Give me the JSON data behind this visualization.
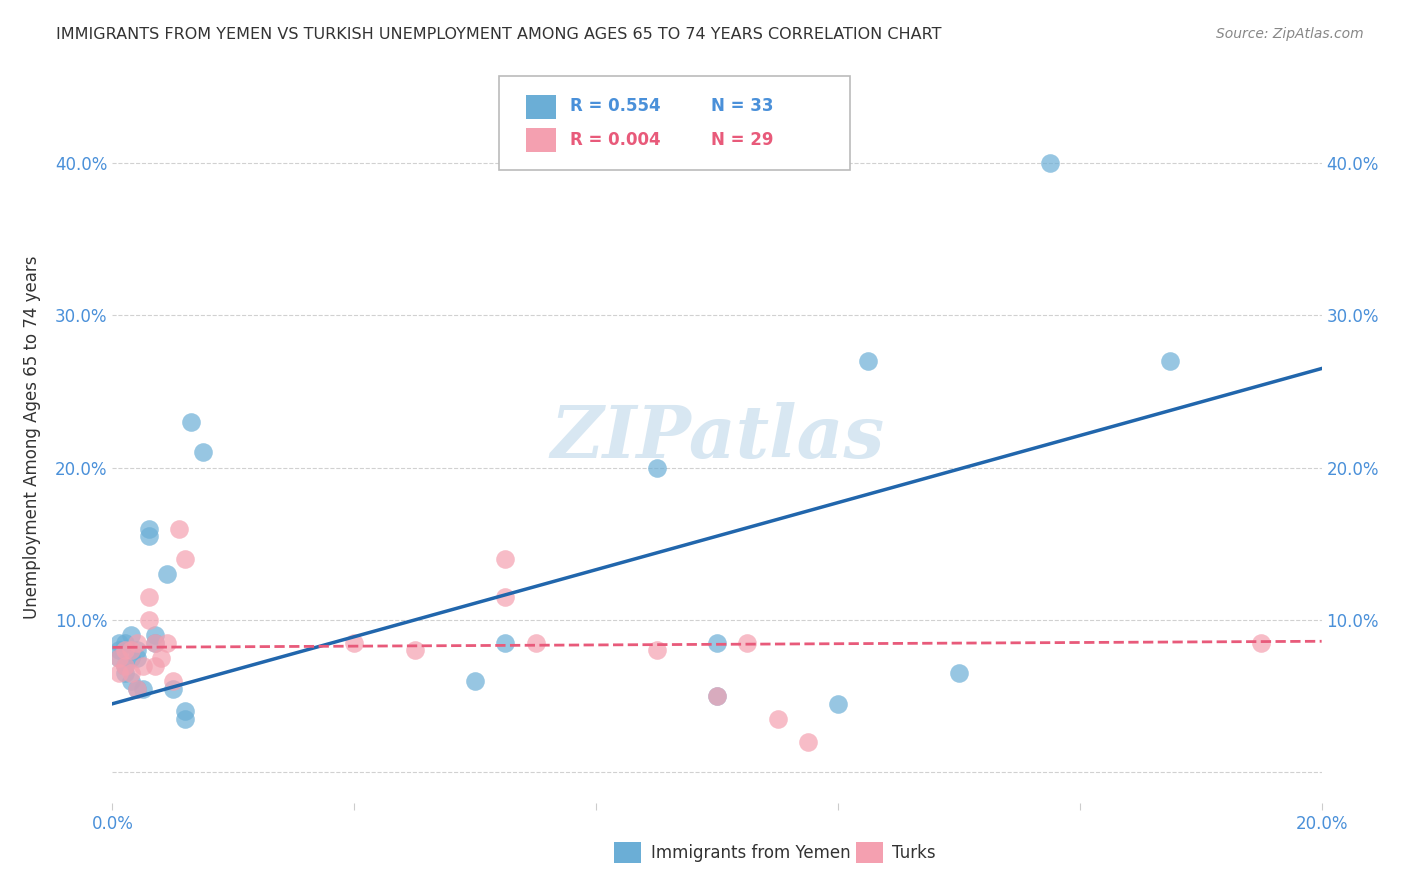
{
  "title": "IMMIGRANTS FROM YEMEN VS TURKISH UNEMPLOYMENT AMONG AGES 65 TO 74 YEARS CORRELATION CHART",
  "source": "Source: ZipAtlas.com",
  "ylabel": "Unemployment Among Ages 65 to 74 years",
  "xlim": [
    0.0,
    0.2
  ],
  "ylim": [
    -0.02,
    0.46
  ],
  "xticks": [
    0.0,
    0.04,
    0.08,
    0.12,
    0.16,
    0.2
  ],
  "yticks": [
    0.0,
    0.1,
    0.2,
    0.3,
    0.4
  ],
  "background_color": "#ffffff",
  "grid_color": "#cccccc",
  "watermark": "ZIPatlas",
  "blue_color": "#6baed6",
  "pink_color": "#f4a0b0",
  "blue_line_color": "#2166ac",
  "pink_line_color": "#e85a7a",
  "legend_blue_R": "R = 0.554",
  "legend_blue_N": "N = 33",
  "legend_pink_R": "R = 0.004",
  "legend_pink_N": "N = 29",
  "legend_label_blue": "Immigrants from Yemen",
  "legend_label_pink": "Turks",
  "blue_x": [
    0.001,
    0.001,
    0.001,
    0.002,
    0.002,
    0.002,
    0.003,
    0.003,
    0.003,
    0.004,
    0.004,
    0.004,
    0.005,
    0.006,
    0.006,
    0.007,
    0.007,
    0.009,
    0.01,
    0.012,
    0.012,
    0.013,
    0.015,
    0.06,
    0.065,
    0.09,
    0.1,
    0.1,
    0.12,
    0.125,
    0.14,
    0.155,
    0.175
  ],
  "blue_y": [
    0.075,
    0.08,
    0.085,
    0.065,
    0.07,
    0.085,
    0.06,
    0.075,
    0.09,
    0.055,
    0.075,
    0.08,
    0.055,
    0.155,
    0.16,
    0.085,
    0.09,
    0.13,
    0.055,
    0.035,
    0.04,
    0.23,
    0.21,
    0.06,
    0.085,
    0.2,
    0.05,
    0.085,
    0.045,
    0.27,
    0.065,
    0.4,
    0.27
  ],
  "pink_x": [
    0.001,
    0.001,
    0.002,
    0.002,
    0.003,
    0.003,
    0.004,
    0.004,
    0.005,
    0.006,
    0.006,
    0.007,
    0.007,
    0.008,
    0.009,
    0.01,
    0.011,
    0.012,
    0.04,
    0.05,
    0.065,
    0.065,
    0.07,
    0.09,
    0.1,
    0.105,
    0.11,
    0.115,
    0.19
  ],
  "pink_y": [
    0.065,
    0.075,
    0.07,
    0.08,
    0.065,
    0.08,
    0.055,
    0.085,
    0.07,
    0.1,
    0.115,
    0.07,
    0.085,
    0.075,
    0.085,
    0.06,
    0.16,
    0.14,
    0.085,
    0.08,
    0.115,
    0.14,
    0.085,
    0.08,
    0.05,
    0.085,
    0.035,
    0.02,
    0.085
  ],
  "blue_line_x": [
    0.0,
    0.2
  ],
  "blue_line_y": [
    0.045,
    0.265
  ],
  "pink_line_x": [
    0.0,
    0.2
  ],
  "pink_line_y": [
    0.082,
    0.086
  ],
  "tick_color": "#4a90d9",
  "title_color": "#333333",
  "source_color": "#888888"
}
